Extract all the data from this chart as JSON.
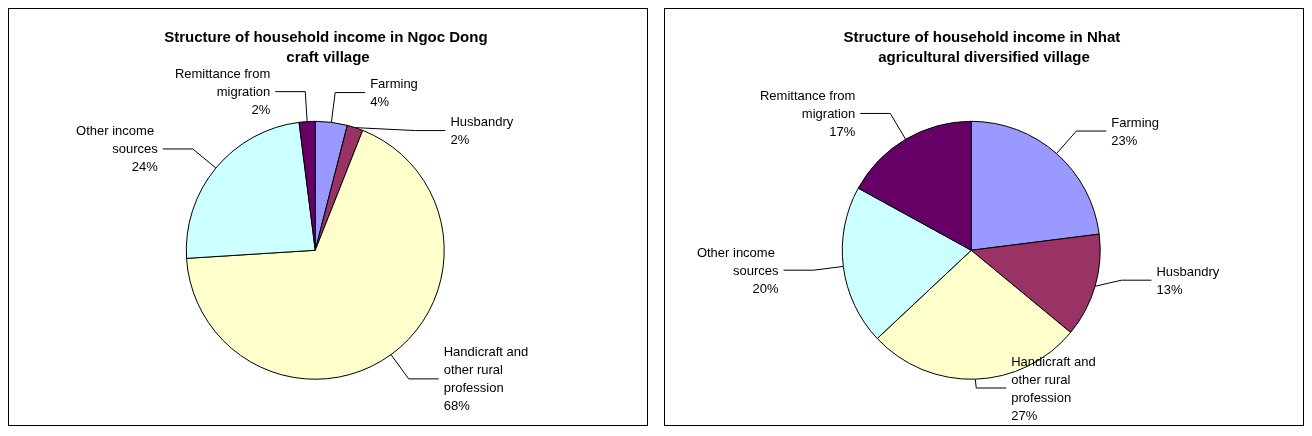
{
  "chart_data": [
    {
      "type": "pie",
      "title": "Structure of household income in Ngoc Dong craft village",
      "categories": [
        "Farming",
        "Husbandry",
        "Handicraft and other rural profession",
        "Other income sources",
        "Remittance from migration"
      ],
      "values": [
        4,
        2,
        68,
        24,
        2
      ],
      "value_labels": [
        "4%",
        "2%",
        "68%",
        "24%",
        "2%"
      ],
      "colors": [
        "#9999ff",
        "#993366",
        "#ffffcc",
        "#ccffff",
        "#660066"
      ],
      "legend": false
    },
    {
      "type": "pie",
      "title": "Structure of household income in Nhat agricultural diversified village",
      "categories": [
        "Farming",
        "Husbandry",
        "Handicraft and other rural profession",
        "Other income sources",
        "Remittance from migration"
      ],
      "values": [
        23,
        13,
        27,
        20,
        17
      ],
      "value_labels": [
        "23%",
        "13%",
        "27%",
        "20%",
        "17%"
      ],
      "colors": [
        "#9999ff",
        "#993366",
        "#ffffcc",
        "#ccffff",
        "#660066"
      ],
      "legend": false
    }
  ]
}
